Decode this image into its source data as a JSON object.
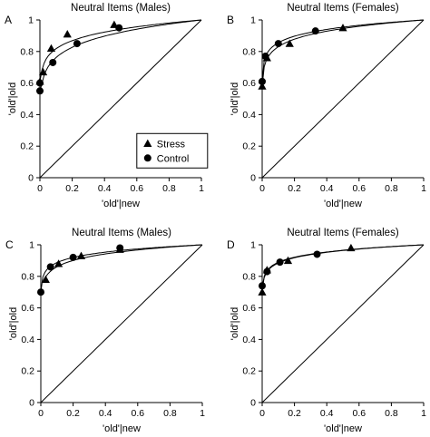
{
  "chart_data": [
    {
      "type": "line",
      "panel_letter": "A",
      "title": "Neutral Items (Males)",
      "xlabel": "'old'|new",
      "ylabel": "'old'|old",
      "xlim": [
        0,
        1
      ],
      "ylim": [
        0,
        1
      ],
      "x_ticks": [
        "0",
        "0.2",
        "0.4",
        "0.6",
        "0.8",
        "1"
      ],
      "y_ticks": [
        "0",
        "0.2",
        "0.4",
        "0.6",
        "0.8",
        "1"
      ],
      "grid": false,
      "chance_line": true,
      "legend": {
        "position": "bottom-right",
        "entries": [
          {
            "label": "Stress",
            "marker": "triangle"
          },
          {
            "label": "Control",
            "marker": "circle"
          }
        ]
      },
      "series": [
        {
          "name": "Stress",
          "marker": "triangle",
          "x": [
            0.0,
            0.02,
            0.07,
            0.17,
            0.46
          ],
          "y": [
            0.61,
            0.67,
            0.82,
            0.91,
            0.97
          ]
        },
        {
          "name": "Control",
          "marker": "circle",
          "x": [
            0.0,
            0.0,
            0.08,
            0.23,
            0.49
          ],
          "y": [
            0.55,
            0.6,
            0.73,
            0.85,
            0.95
          ]
        }
      ]
    },
    {
      "type": "line",
      "panel_letter": "B",
      "title": "Neutral Items (Females)",
      "xlabel": "'old'|new",
      "ylabel": "'old'|old",
      "xlim": [
        0,
        1
      ],
      "ylim": [
        0,
        1
      ],
      "x_ticks": [
        "0",
        "0.2",
        "0.4",
        "0.6",
        "0.8",
        "1"
      ],
      "y_ticks": [
        "0",
        "0.2",
        "0.4",
        "0.6",
        "0.8",
        "1"
      ],
      "grid": false,
      "chance_line": true,
      "series": [
        {
          "name": "Stress",
          "marker": "triangle",
          "x": [
            0.0,
            0.03,
            0.17,
            0.5
          ],
          "y": [
            0.58,
            0.76,
            0.85,
            0.95
          ]
        },
        {
          "name": "Control",
          "marker": "circle",
          "x": [
            0.0,
            0.02,
            0.1,
            0.33
          ],
          "y": [
            0.61,
            0.77,
            0.85,
            0.93
          ]
        }
      ]
    },
    {
      "type": "line",
      "panel_letter": "C",
      "title": "Neutral Items (Males)",
      "xlabel": "'old'|new",
      "ylabel": "'old'|old",
      "xlim": [
        0,
        1
      ],
      "ylim": [
        0,
        1
      ],
      "x_ticks": [
        "0",
        "0.2",
        "0.4",
        "0.6",
        "0.8",
        "1"
      ],
      "y_ticks": [
        "0",
        "0.2",
        "0.4",
        "0.6",
        "0.8",
        "1"
      ],
      "grid": false,
      "chance_line": true,
      "series": [
        {
          "name": "Stress",
          "marker": "triangle",
          "x": [
            0.03,
            0.11,
            0.25,
            0.49
          ],
          "y": [
            0.78,
            0.88,
            0.93,
            0.97
          ]
        },
        {
          "name": "Control",
          "marker": "circle",
          "x": [
            0.0,
            0.06,
            0.2,
            0.49
          ],
          "y": [
            0.7,
            0.86,
            0.92,
            0.98
          ]
        }
      ]
    },
    {
      "type": "line",
      "panel_letter": "D",
      "title": "Neutral Items (Females)",
      "xlabel": "'old'|new",
      "ylabel": "'old'|old",
      "xlim": [
        0,
        1
      ],
      "ylim": [
        0,
        1
      ],
      "x_ticks": [
        "0",
        "0.2",
        "0.4",
        "0.6",
        "0.8",
        "1"
      ],
      "y_ticks": [
        "0",
        "0.2",
        "0.4",
        "0.6",
        "0.8",
        "1"
      ],
      "grid": false,
      "chance_line": true,
      "series": [
        {
          "name": "Stress",
          "marker": "triangle",
          "x": [
            0.0,
            0.03,
            0.16,
            0.55
          ],
          "y": [
            0.7,
            0.84,
            0.9,
            0.98
          ]
        },
        {
          "name": "Control",
          "marker": "circle",
          "x": [
            0.0,
            0.03,
            0.11,
            0.34
          ],
          "y": [
            0.74,
            0.83,
            0.89,
            0.94
          ]
        }
      ]
    }
  ]
}
